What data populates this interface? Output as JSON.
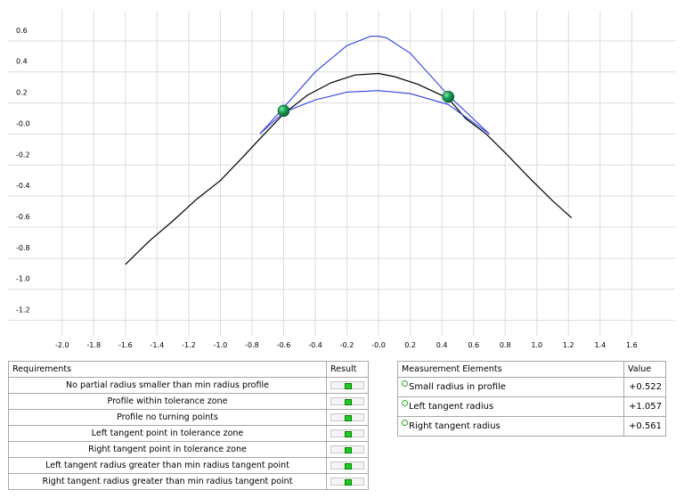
{
  "chart_data": {
    "type": "line",
    "x_ticks": [
      "-2.0",
      "-1.8",
      "-1.6",
      "-1.4",
      "-1.2",
      "-1.0",
      "-0.8",
      "-0.6",
      "-0.4",
      "-0.2",
      "-0.0",
      "0.2",
      "0.4",
      "0.6",
      "0.8",
      "1.0",
      "1.2",
      "1.4",
      "1.6"
    ],
    "y_ticks": [
      "0.6",
      "0.4",
      "0.2",
      "-0.0",
      "-0.2",
      "-0.4",
      "-0.6",
      "-0.8",
      "-1.0",
      "-1.2"
    ],
    "xlim": [
      -2.1,
      1.75
    ],
    "ylim": [
      -1.3,
      0.76
    ],
    "grid": true,
    "series": [
      {
        "color": "#000000",
        "x": [
          -1.6,
          -1.45,
          -1.3,
          -1.15,
          -1.0,
          -0.85,
          -0.75,
          -0.6,
          -0.45,
          -0.3,
          -0.15,
          0.0,
          0.1,
          0.25,
          0.44,
          0.55,
          0.68,
          0.8,
          0.95,
          1.1,
          1.22
        ],
        "y": [
          -0.84,
          -0.69,
          -0.56,
          -0.42,
          -0.3,
          -0.14,
          -0.03,
          0.13,
          0.25,
          0.33,
          0.38,
          0.39,
          0.37,
          0.32,
          0.23,
          0.1,
          0.0,
          -0.12,
          -0.28,
          -0.43,
          -0.54
        ]
      },
      {
        "color": "#2f3fe0",
        "x": [
          -0.75,
          -0.6,
          -0.4,
          -0.2,
          -0.05,
          0.0,
          0.05,
          0.2,
          0.44,
          0.7
        ],
        "y": [
          0.0,
          0.17,
          0.4,
          0.57,
          0.63,
          0.63,
          0.62,
          0.52,
          0.25,
          0.0
        ]
      },
      {
        "color": "#2f3fe0",
        "x": [
          -0.75,
          -0.6,
          -0.4,
          -0.2,
          0.0,
          0.2,
          0.44,
          0.7
        ],
        "y": [
          0.0,
          0.14,
          0.22,
          0.27,
          0.28,
          0.26,
          0.19,
          0.0
        ]
      }
    ],
    "points": [
      {
        "x": -0.6,
        "y": 0.15,
        "color": "#1a9f55"
      },
      {
        "x": 0.44,
        "y": 0.24,
        "color": "#1a9f55"
      }
    ]
  },
  "requirements": {
    "header_requirements": "Requirements",
    "header_result": "Result",
    "rows": [
      {
        "label": "No partial radius smaller than min radius profile",
        "result": "pass"
      },
      {
        "label": "Profile within tolerance zone",
        "result": "pass"
      },
      {
        "label": "Profile no turning points",
        "result": "pass"
      },
      {
        "label": "Left tangent point in tolerance zone",
        "result": "pass"
      },
      {
        "label": "Right tangent point in tolerance zone",
        "result": "pass"
      },
      {
        "label": "Left tangent radius greater than min radius tangent point",
        "result": "pass"
      },
      {
        "label": "Right tangent radius greater than min radius tangent point",
        "result": "pass"
      }
    ]
  },
  "measurement": {
    "header_elements": "Measurement Elements",
    "header_value": "Value",
    "rows": [
      {
        "label": "Small radius in profile",
        "value": "+0.522"
      },
      {
        "label": "Left tangent radius",
        "value": "+1.057"
      },
      {
        "label": "Right tangent radius",
        "value": "+0.561"
      }
    ]
  }
}
